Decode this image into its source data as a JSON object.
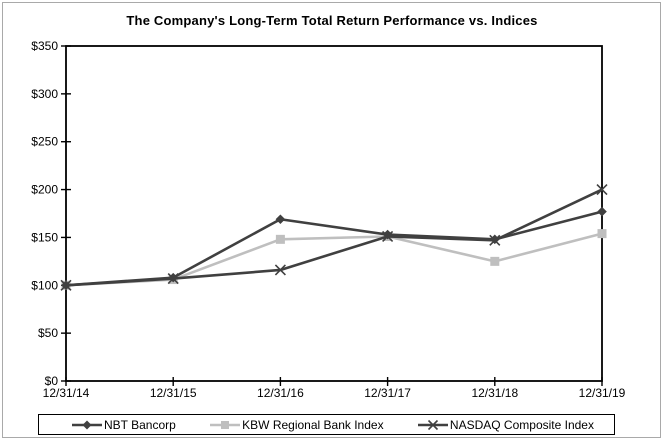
{
  "chart_data": {
    "type": "line",
    "title": "The Company's Long-Term Total Return Performance vs. Indices",
    "categories": [
      "12/31/14",
      "12/31/15",
      "12/31/16",
      "12/31/17",
      "12/31/18",
      "12/31/19"
    ],
    "series": [
      {
        "name": "NBT Bancorp",
        "marker": "diamond",
        "color": "#404040",
        "values": [
          100,
          108,
          169,
          153,
          148,
          177
        ]
      },
      {
        "name": "KBW Regional Bank Index",
        "marker": "square",
        "color": "#bfbfbf",
        "values": [
          100,
          106,
          148,
          151,
          125,
          154
        ]
      },
      {
        "name": "NASDAQ Composite Index",
        "marker": "x",
        "color": "#404040",
        "values": [
          100,
          107,
          116,
          151,
          147,
          200
        ]
      }
    ],
    "ylim": [
      0,
      350
    ],
    "yticks": [
      {
        "value": 0,
        "label": "$0"
      },
      {
        "value": 50,
        "label": "$50"
      },
      {
        "value": 100,
        "label": "$100"
      },
      {
        "value": 150,
        "label": "$150"
      },
      {
        "value": 200,
        "label": "$200"
      },
      {
        "value": 250,
        "label": "$250"
      },
      {
        "value": 300,
        "label": "$300"
      },
      {
        "value": 350,
        "label": "$350"
      }
    ],
    "grid": false,
    "legend_position": "bottom",
    "axis_color": "#000000",
    "figure_border_color": "#a9a9a9"
  }
}
